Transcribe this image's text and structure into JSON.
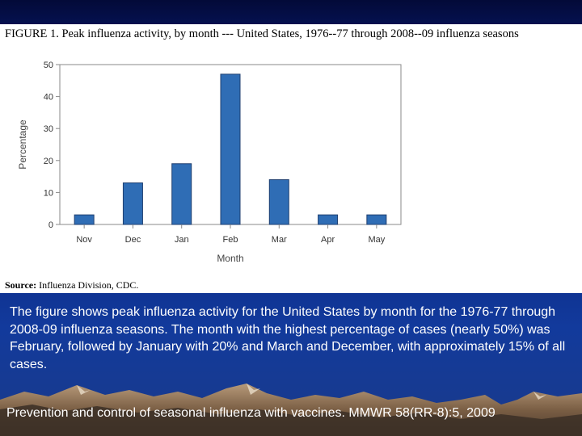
{
  "figure": {
    "title": "FIGURE 1. Peak influenza activity, by month --- United States, 1976--77 through 2008--09 influenza seasons",
    "source_label": "Source:",
    "source_text": "Influenza Division, CDC."
  },
  "chart_data": {
    "type": "bar",
    "categories": [
      "Nov",
      "Dec",
      "Jan",
      "Feb",
      "Mar",
      "Apr",
      "May"
    ],
    "values": [
      3,
      13,
      19,
      47,
      14,
      3,
      3
    ],
    "xlabel": "Month",
    "ylabel": "Percentage",
    "ylim": [
      0,
      50
    ],
    "yticks": [
      "0",
      "10",
      "20",
      "30",
      "40",
      "50"
    ],
    "grid": false,
    "bar_color": "#2f6db5"
  },
  "description": "The figure shows peak influenza activity for the United States by month for the 1976-77 through 2008-09 influenza seasons. The month with the highest percentage of cases (nearly 50%) was February, followed by January with 20% and March and December, with approximately 15% of all cases.",
  "citation": "Prevention and control of seasonal influenza with vaccines. MMWR 58(RR-8):5, 2009",
  "colors": {
    "background": "#0b2a86",
    "panel": "#ffffff",
    "text": "#ffffff"
  }
}
